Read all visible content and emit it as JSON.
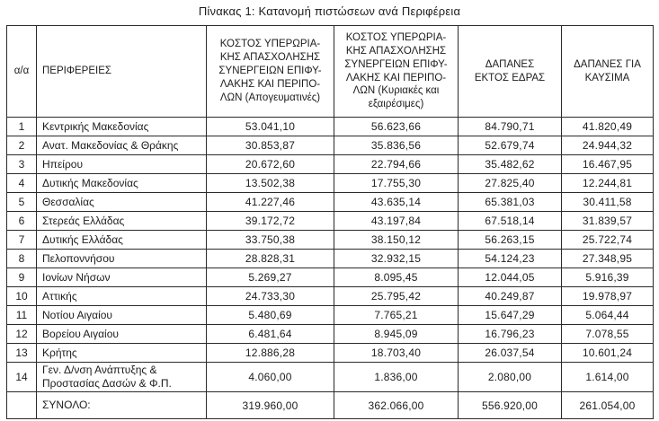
{
  "title": "Πίνακας 1: Κατανομή πιστώσεων ανά Περιφέρεια",
  "table": {
    "headers": [
      "α/α",
      "ΠΕΡΙΦΕΡΕΙΕΣ",
      "ΚΟΣΤΟΣ ΥΠΕΡΩΡΙΑ-\nΚΗΣ ΑΠΑΣΧΟΛΗΣΗΣ\nΣΥΝΕΡΓΕΙΩΝ ΕΠΙΦΥ-\nΛΑΚΗΣ ΚΑΙ ΠΕΡΙΠΟ-\nΛΩΝ (Απογευματινές)",
      "ΚΟΣΤΟΣ ΥΠΕΡΩΡΙΑ-\nΚΗΣ ΑΠΑΣΧΟΛΗΣΗΣ\nΣΥΝΕΡΓΕΙΩΝ ΕΠΙΦΥ-\nΛΑΚΗΣ ΚΑΙ ΠΕΡΙΠΟ-\nΛΩΝ (Κυριακές και\nεξαιρέσιμες)",
      "ΔΑΠΑΝΕΣ\nΕΚΤΟΣ ΕΔΡΑΣ",
      "ΔΑΠΑΝΕΣ ΓΙΑ\nΚΑΥΣΙΜΑ"
    ],
    "rows": [
      {
        "num": "1",
        "region": "Κεντρικής Μακεδονίας",
        "values": [
          "53.041,10",
          "56.623,66",
          "84.790,71",
          "41.820,49"
        ]
      },
      {
        "num": "2",
        "region": "Ανατ. Μακεδονίας & Θράκης",
        "values": [
          "30.853,87",
          "35.836,56",
          "52.679,74",
          "24.944,32"
        ]
      },
      {
        "num": "3",
        "region": "Ηπείρου",
        "values": [
          "20.672,60",
          "22.794,66",
          "35.482,62",
          "16.467,95"
        ]
      },
      {
        "num": "4",
        "region": "Δυτικής Μακεδονίας",
        "values": [
          "13.502,38",
          "17.755,30",
          "27.825,40",
          "12.244,81"
        ]
      },
      {
        "num": "5",
        "region": "Θεσσαλίας",
        "values": [
          "41.227,46",
          "43.635,14",
          "65.381,03",
          "30.411,58"
        ]
      },
      {
        "num": "6",
        "region": "Στερεάς Ελλάδας",
        "values": [
          "39.172,72",
          "43.197,84",
          "67.518,14",
          "31.839,57"
        ]
      },
      {
        "num": "7",
        "region": "Δυτικής Ελλάδας",
        "values": [
          "33.750,38",
          "38.150,12",
          "56.263,15",
          "25.722,74"
        ]
      },
      {
        "num": "8",
        "region": "Πελοποννήσου",
        "values": [
          "28.828,31",
          "32.932,15",
          "54.124,23",
          "27.348,95"
        ]
      },
      {
        "num": "9",
        "region": "Ιονίων Νήσων",
        "values": [
          "5.269,27",
          "8.095,45",
          "12.044,05",
          "5.916,39"
        ]
      },
      {
        "num": "10",
        "region": "Αττικής",
        "values": [
          "24.733,30",
          "25.795,42",
          "40.249,87",
          "19.978,97"
        ]
      },
      {
        "num": "11",
        "region": "Νοτίου Αιγαίου",
        "values": [
          "5.480,69",
          "7.765,21",
          "15.647,29",
          "5.064,44"
        ]
      },
      {
        "num": "12",
        "region": "Βορείου Αιγαίου",
        "values": [
          "6.481,64",
          "8.945,09",
          "16.796,23",
          "7.078,55"
        ]
      },
      {
        "num": "13",
        "region": "Κρήτης",
        "values": [
          "12.886,28",
          "18.703,40",
          "26.037,54",
          "10.601,24"
        ]
      },
      {
        "num": "14",
        "region": "Γεν. Δ/νση Ανάπτυξης &\nΠροστασίας Δασών & Φ.Π.",
        "values": [
          "4.060,00",
          "1.836,00",
          "2.080,00",
          "1.614,00"
        ]
      }
    ],
    "total": {
      "num": "",
      "label": "ΣΥΝΟΛΟ:",
      "values": [
        "319.960,00",
        "362.066,00",
        "556.920,00",
        "261.054,00"
      ]
    }
  }
}
